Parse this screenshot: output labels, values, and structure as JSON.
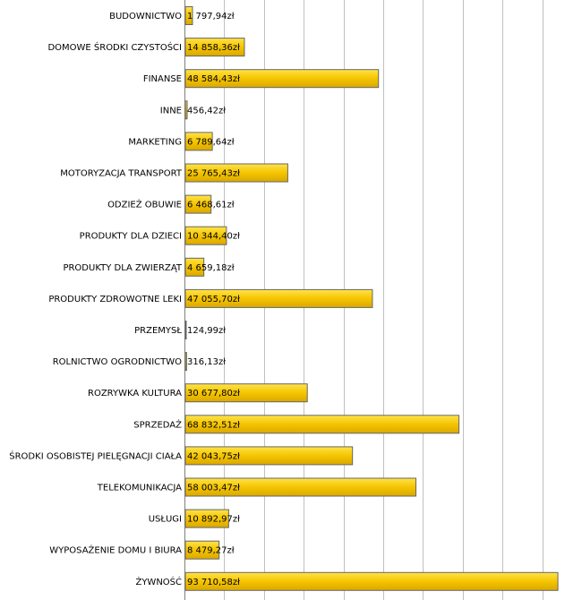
{
  "chart_data": {
    "type": "bar",
    "orientation": "horizontal",
    "title": "",
    "xlabel": "",
    "ylabel": "",
    "xlim": [
      0,
      100000
    ],
    "grid_step": 10000,
    "grid": true,
    "bar_color": "#f5c400",
    "categories": [
      "BUDOWNICTWO",
      "DOMOWE ŚRODKI CZYSTOŚCI",
      "FINANSE",
      "INNE",
      "MARKETING",
      "MOTORYZACJA TRANSPORT",
      "ODZIEŻ OBUWIE",
      "PRODUKTY DLA DZIECI",
      "PRODUKTY DLA ZWIERZĄT",
      "PRODUKTY ZDROWOTNE LEKI",
      "PRZEMYSŁ",
      "ROLNICTWO OGRODNICTWO",
      "ROZRYWKA KULTURA",
      "SPRZEDAŻ",
      "ŚRODKI OSOBISTEJ PIELĘGNACJI CIAŁA",
      "TELEKOMUNIKACJA",
      "USŁUGI",
      "WYPOSAŻENIE DOMU I BIURA",
      "ŻYWNOŚĆ"
    ],
    "values": [
      1797.94,
      14858.36,
      48584.43,
      456.42,
      6789.64,
      25765.43,
      6468.61,
      10344.4,
      4659.18,
      47055.7,
      124.99,
      316.13,
      30677.8,
      68832.51,
      42043.75,
      58003.47,
      10892.97,
      8479.27,
      93710.58
    ],
    "value_labels": [
      "1 797,94zł",
      "14 858,36zł",
      "48 584,43zł",
      "456,42zł",
      "6 789,64zł",
      "25 765,43zł",
      "6 468,61zł",
      "10 344,40zł",
      "4 659,18zł",
      "47 055,70zł",
      "124,99zł",
      "316,13zł",
      "30 677,80zł",
      "68 832,51zł",
      "42 043,75zł",
      "58 003,47zł",
      "10 892,97zł",
      "8 479,27zł",
      "93 710,58zł"
    ]
  }
}
